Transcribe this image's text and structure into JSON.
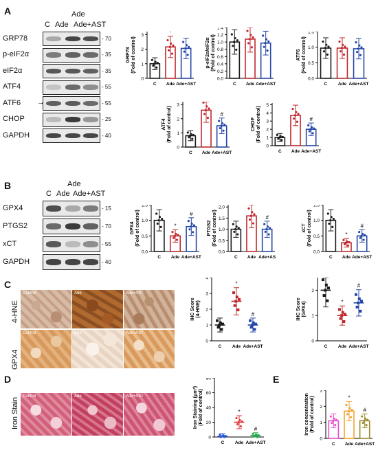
{
  "panels": {
    "A": "A",
    "B": "B",
    "C": "C",
    "D": "D",
    "E": "E"
  },
  "lanes": {
    "c": "C",
    "ade": "Ade",
    "ade_ast_1": "Ade",
    "ade_ast_2": "Ade+AST"
  },
  "lanesB": {
    "c": "C",
    "ade": "Ade",
    "ade_ast_1": "Ade",
    "ade_ast_2": "Ade+AST"
  },
  "blotA": [
    {
      "label": "GRP78",
      "mw": "70"
    },
    {
      "label": "p-eIF2α",
      "mw": "35"
    },
    {
      "label": "eIF2α",
      "mw": "35"
    },
    {
      "label": "ATF4",
      "mw": "55"
    },
    {
      "label": "ATF6",
      "mw": "55"
    },
    {
      "label": "CHOP",
      "mw": "25"
    },
    {
      "label": "GAPDH",
      "mw": "40"
    }
  ],
  "blotB": [
    {
      "label": "GPX4",
      "mw": "15"
    },
    {
      "label": "PTGS2",
      "mw": "70"
    },
    {
      "label": "xCT",
      "mw": "55"
    },
    {
      "label": "GAPDH",
      "mw": "40"
    }
  ],
  "atf6_arrow": "→",
  "stainC": {
    "row1": "4-HNE",
    "row2": "GPX4",
    "caps": [
      "Control",
      "Ade",
      "Ade+AST"
    ]
  },
  "stainD": {
    "row": "Iron Stain",
    "caps": [
      "Control",
      "Ade",
      "Ade+AST"
    ]
  },
  "colors": {
    "c": "#1a1a1a",
    "ade": "#c0282d",
    "ast": "#2446a8",
    "ironC": "#e84fd1",
    "ironAde": "#f4a230",
    "ironAst": "#9a8a2a",
    "dC": "#2a55d8",
    "dAde": "#e23a3a",
    "dAst": "#22a84a"
  },
  "chart_data": [
    {
      "id": "GRP78",
      "type": "bar",
      "title": "",
      "ylabel": "GRP78",
      "ylabel2": "(Fold of control)",
      "categories": [
        "C",
        "Ade",
        "Ade+AST"
      ],
      "values": [
        1.0,
        2.15,
        2.05
      ],
      "ylim": [
        0,
        3.2
      ],
      "ticks": [
        "0",
        "1",
        "2",
        "3"
      ],
      "sig": [
        "",
        "*",
        ""
      ],
      "catlabels": [
        "C",
        "Ade",
        "Ade+AST"
      ]
    },
    {
      "id": "peIF2",
      "type": "bar",
      "title": "",
      "ylabel": "p-eIF2α/eIF2α",
      "ylabel2": "(Fold of control)",
      "categories": [
        "C",
        "Ade",
        "Ade+AST"
      ],
      "values": [
        1.0,
        1.08,
        0.97
      ],
      "ylim": [
        0,
        1.4
      ],
      "ticks": [
        "0.0",
        "0.2",
        "0.4",
        "0.6",
        "0.8",
        "1.0",
        "1.2",
        "1.4"
      ],
      "sig": [
        "",
        "",
        ""
      ],
      "catlabels": [
        "C",
        "Ade",
        "Ade+AST"
      ]
    },
    {
      "id": "ATF6",
      "type": "bar",
      "title": "",
      "ylabel": "ATF6",
      "ylabel2": "(Fold of control)",
      "categories": [
        "C",
        "Ade",
        "Ade+AST"
      ],
      "values": [
        0.97,
        0.97,
        0.95
      ],
      "ylim": [
        0,
        1.5
      ],
      "ticks": [
        "0.0",
        "0.5",
        "1.0",
        "1.5"
      ],
      "sig": [
        "",
        "",
        ""
      ],
      "catlabels": [
        "C",
        "Ade",
        "Ade+AST"
      ]
    },
    {
      "id": "ATF4",
      "type": "bar",
      "title": "",
      "ylabel": "ATF4",
      "ylabel2": "(Fold of control)",
      "categories": [
        "C",
        "Ade",
        "Ade+AST"
      ],
      "values": [
        0.8,
        2.6,
        1.5
      ],
      "ylim": [
        0,
        3.2
      ],
      "ticks": [
        "0",
        "1",
        "2",
        "3"
      ],
      "sig": [
        "",
        "*",
        "#"
      ],
      "catlabels": [
        "C",
        "Ade",
        "Ade+AST"
      ]
    },
    {
      "id": "CHOP",
      "type": "bar",
      "title": "",
      "ylabel": "CHOP",
      "ylabel2": "(Fold of control)",
      "categories": [
        "C",
        "Ade",
        "Ade+AST"
      ],
      "values": [
        1.0,
        3.7,
        2.0
      ],
      "ylim": [
        0,
        5.2
      ],
      "ticks": [
        "0",
        "1",
        "2",
        "3",
        "4",
        "5"
      ],
      "sig": [
        "",
        "*",
        "#"
      ],
      "catlabels": [
        "C",
        "Ade",
        "Ade+AST"
      ]
    },
    {
      "id": "GPX4",
      "type": "bar",
      "title": "",
      "ylabel": "GPX4",
      "ylabel2": "(Fold of control)",
      "categories": [
        "C",
        "Ade",
        "Ade+AST"
      ],
      "values": [
        1.0,
        0.5,
        0.8
      ],
      "ylim": [
        0,
        1.5
      ],
      "ticks": [
        "0.0",
        "0.5",
        "1.0",
        "1.5"
      ],
      "sig": [
        "",
        "*",
        "#"
      ],
      "catlabels": [
        "C",
        "Ade",
        "Ade+AST"
      ]
    },
    {
      "id": "PTGS2",
      "type": "bar",
      "title": "",
      "ylabel": "PTGS2",
      "ylabel2": "(Fold of control)",
      "categories": [
        "C",
        "Ade",
        "Ade+AST"
      ],
      "values": [
        1.0,
        1.6,
        1.0
      ],
      "ylim": [
        0,
        2.1
      ],
      "ticks": [
        "0.0",
        "0.5",
        "1.0",
        "1.5",
        "2.0"
      ],
      "sig": [
        "",
        "*",
        "#"
      ],
      "catlabels": [
        "C",
        "Ade",
        "Ade+AS"
      ]
    },
    {
      "id": "xCT",
      "type": "bar",
      "title": "",
      "ylabel": "xCT",
      "ylabel2": "(Fold of control)",
      "categories": [
        "C",
        "Ade",
        "Ade+AST"
      ],
      "values": [
        1.0,
        0.28,
        0.5
      ],
      "ylim": [
        0,
        1.5
      ],
      "ticks": [
        "0.0",
        "0.5",
        "1.0",
        "1.5"
      ],
      "sig": [
        "",
        "*",
        "#"
      ],
      "catlabels": [
        "C",
        "Ade",
        "Ade+AST"
      ]
    },
    {
      "id": "IHC_4HNE",
      "type": "scatter",
      "title": "",
      "ylabel": "IHC Score",
      "ylabel2": "(4-HNE)",
      "categories": [
        "C",
        "Ade",
        "Ade+AST"
      ],
      "values": [
        1.0,
        2.5,
        1.0
      ],
      "ylim": [
        0,
        4
      ],
      "ticks": [
        "0",
        "1",
        "2",
        "3",
        "4"
      ],
      "sig": [
        "",
        "*",
        "#"
      ],
      "catlabels": [
        "C",
        "Ade",
        "Ade+AST"
      ]
    },
    {
      "id": "IHC_GPX4",
      "type": "scatter",
      "title": "",
      "ylabel": "IHC Score",
      "ylabel2": "(GPX4)",
      "categories": [
        "C",
        "Ade",
        "Ade+AST"
      ],
      "values": [
        2.0,
        1.0,
        1.5
      ],
      "ylim": [
        0,
        2.5
      ],
      "ticks": [
        "0",
        "1",
        "2"
      ],
      "sig": [
        "",
        "*",
        "#"
      ],
      "catlabels": [
        "C",
        "Ade",
        "Ade+AST"
      ]
    },
    {
      "id": "Iron",
      "type": "scatter",
      "title": "",
      "ylabel": "Iron Staining (μm²)",
      "ylabel2": "(Fold of control)",
      "categories": [
        "C",
        "Ade",
        "Ade+AST"
      ],
      "values": [
        1.0,
        20,
        2.0
      ],
      "ylim": [
        0,
        80
      ],
      "ticks": [
        "0",
        "20",
        "40",
        "60",
        "80"
      ],
      "sig": [
        "",
        "*",
        "#"
      ],
      "catlabels": [
        "C",
        "Ade",
        "Ade+AST"
      ]
    },
    {
      "id": "IronConc",
      "type": "bar",
      "title": "",
      "ylabel": "Iron concentration",
      "ylabel2": "(Fold of control)",
      "categories": [
        "C",
        "Ade",
        "Ade+AST"
      ],
      "values": [
        1.1,
        1.7,
        1.1
      ],
      "ylim": [
        0,
        3.0
      ],
      "ticks": [
        "0",
        "1",
        "2",
        "3"
      ],
      "sig": [
        "",
        "*",
        "#"
      ],
      "catlabels": [
        "C",
        "Ade",
        "Ade+AST"
      ]
    }
  ]
}
